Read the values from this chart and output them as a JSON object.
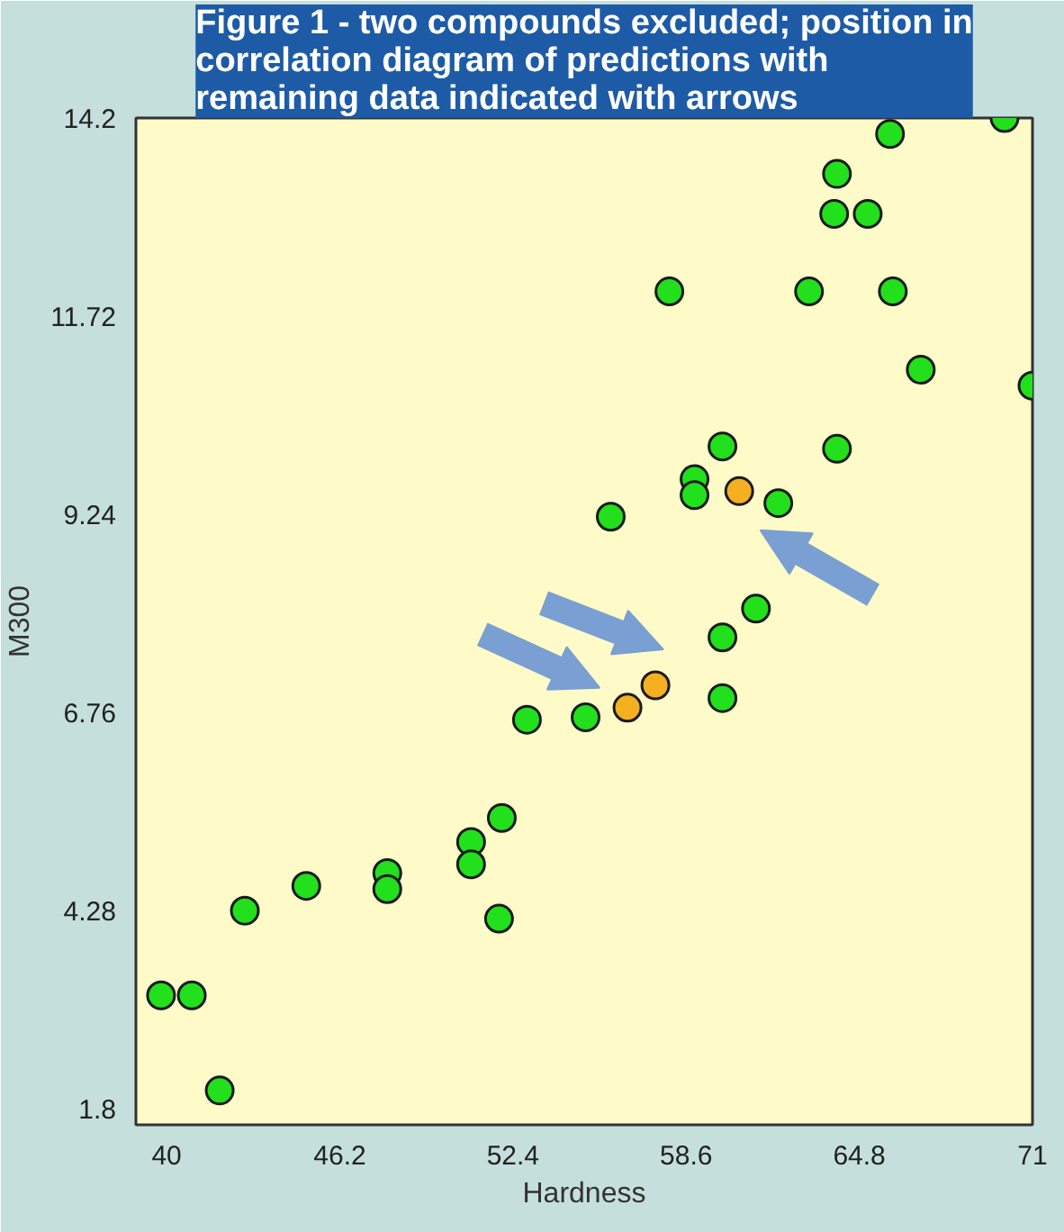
{
  "chart_data": {
    "type": "scatter",
    "title": "Figure 1 - two compounds excluded; position in correlation diagram of predictions with remaining data indicated with arrows",
    "xlabel": "Hardness",
    "ylabel": "M300",
    "xlim": [
      38.9,
      71
    ],
    "ylim": [
      1.6,
      14.2
    ],
    "xticks": [
      40,
      46.2,
      52.4,
      58.6,
      64.8,
      71
    ],
    "yticks": [
      1.8,
      4.28,
      6.76,
      9.24,
      11.72,
      14.2
    ],
    "marker": "circle",
    "series": [
      {
        "color": "#22e01c",
        "x": [
          70.0,
          65.9,
          64.0,
          63.9,
          65.1,
          58.0,
          63.0,
          66.0,
          67.0,
          71.0,
          59.9,
          64.0,
          58.9,
          58.9,
          61.9,
          55.9,
          61.1,
          59.9,
          59.9,
          55.0,
          52.9,
          52.0,
          50.9,
          50.9,
          51.9,
          47.9,
          47.9,
          45.0,
          42.8,
          39.8,
          40.9,
          41.9
        ],
        "values": [
          14.2,
          14.0,
          13.5,
          13.0,
          13.0,
          12.03,
          12.03,
          12.03,
          11.05,
          10.85,
          10.09,
          10.06,
          9.68,
          9.48,
          9.38,
          9.21,
          8.06,
          7.7,
          6.94,
          6.7,
          6.67,
          5.44,
          5.14,
          4.86,
          4.18,
          4.75,
          4.55,
          4.59,
          4.28,
          3.22,
          3.22,
          2.03
        ]
      },
      {
        "color": "#f5b021",
        "x": [
          60.5,
          57.5,
          56.5
        ],
        "values": [
          9.53,
          7.1,
          6.82
        ]
      }
    ]
  }
}
